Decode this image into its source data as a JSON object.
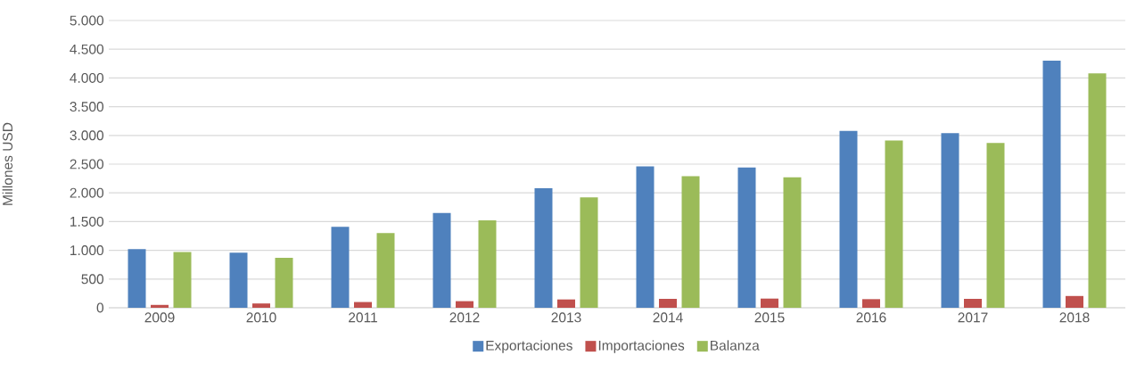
{
  "chart_data": {
    "type": "bar",
    "ylabel": "Millones USD",
    "categories": [
      "2009",
      "2010",
      "2011",
      "2012",
      "2013",
      "2014",
      "2015",
      "2016",
      "2017",
      "2018"
    ],
    "series": [
      {
        "name": "Exportaciones",
        "color": "#4f81bd",
        "values": [
          1020,
          960,
          1410,
          1650,
          2080,
          2460,
          2440,
          3080,
          3040,
          4300
        ]
      },
      {
        "name": "Importaciones",
        "color": "#c0504d",
        "values": [
          50,
          75,
          100,
          115,
          145,
          155,
          160,
          150,
          155,
          205
        ]
      },
      {
        "name": "Balanza",
        "color": "#9bbb59",
        "values": [
          970,
          870,
          1300,
          1520,
          1920,
          2290,
          2270,
          2910,
          2870,
          4080
        ]
      }
    ],
    "ylim": [
      0,
      5000
    ],
    "yticks": [
      {
        "value": 0,
        "label": "0"
      },
      {
        "value": 500,
        "label": "500"
      },
      {
        "value": 1000,
        "label": "1.000"
      },
      {
        "value": 1500,
        "label": "1.500"
      },
      {
        "value": 2000,
        "label": "2.000"
      },
      {
        "value": 2500,
        "label": "2.500"
      },
      {
        "value": 3000,
        "label": "3.000"
      },
      {
        "value": 3500,
        "label": "3.500"
      },
      {
        "value": 4000,
        "label": "4.000"
      },
      {
        "value": 4500,
        "label": "4.500"
      },
      {
        "value": 5000,
        "label": "5.000"
      }
    ],
    "grid": "y",
    "legend": "bottom"
  }
}
